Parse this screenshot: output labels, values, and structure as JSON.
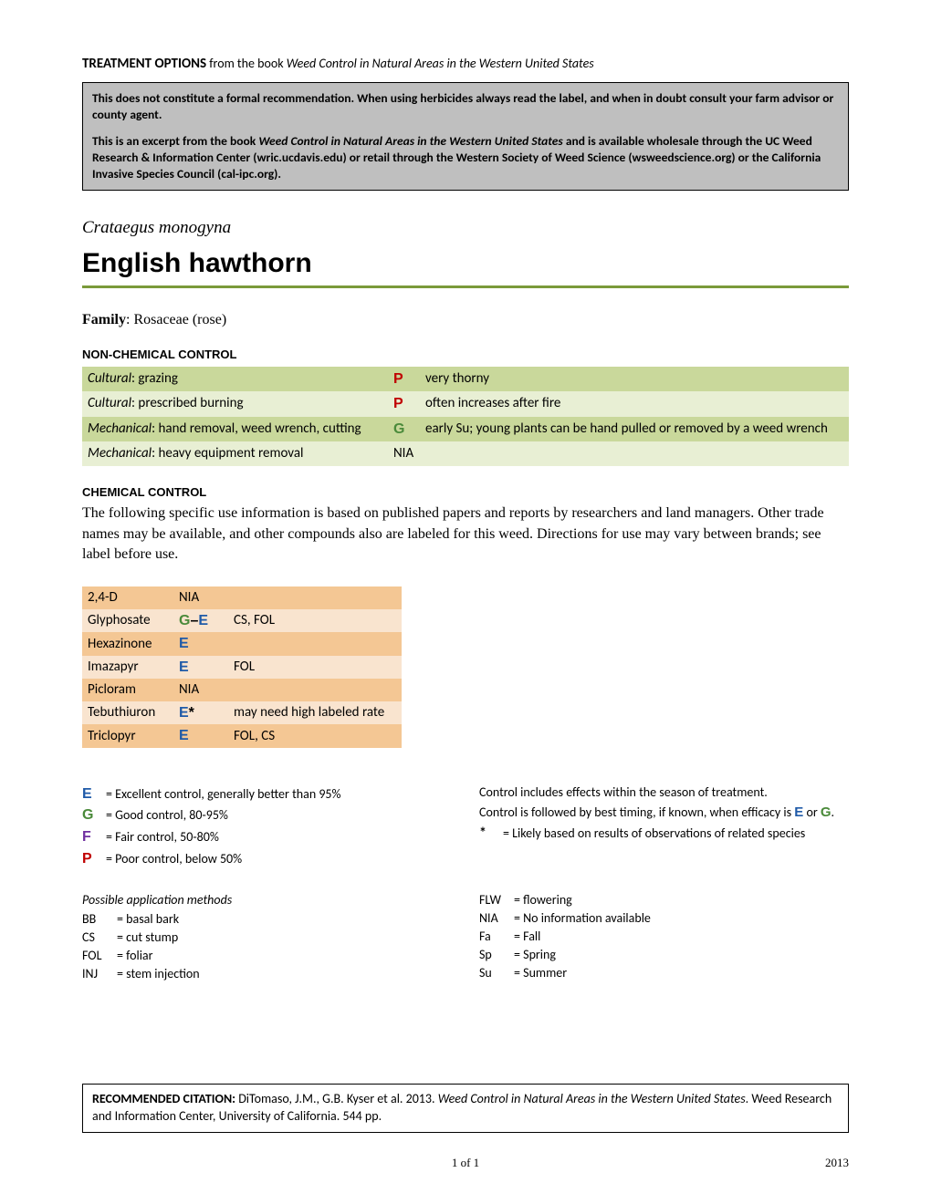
{
  "header": {
    "title_bold": "TREATMENT OPTIONS",
    "title_rest": " from the book ",
    "title_italic": "Weed Control in Natural Areas in the Western United States"
  },
  "disclaimer": {
    "p1": "This does not constitute a formal recommendation. When using herbicides always read the label, and when in doubt consult your farm advisor or county agent.",
    "p2_a": "This is an excerpt from the book ",
    "p2_italic": "Weed Control in Natural Areas in the Western United States",
    "p2_b": " and is available wholesale through the UC Weed Research & Information Center (wric.ucdavis.edu) or retail through the Western Society of Weed Science (wsweedscience.org) or the California Invasive Species Council (cal-ipc.org)."
  },
  "species": {
    "scientific": "Crataegus monogyna",
    "common": "English hawthorn",
    "family_label": "Family",
    "family_value": ": Rosaceae (rose)"
  },
  "nonchem": {
    "heading": "NON-CHEMICAL CONTROL",
    "rows": [
      {
        "type": "Cultural",
        "method": ": grazing",
        "rating": "P",
        "color": "#c00000",
        "note": "very thorny",
        "shade": "dark"
      },
      {
        "type": "Cultural",
        "method": ": prescribed burning",
        "rating": "P",
        "color": "#c00000",
        "note": "often increases after fire",
        "shade": "light"
      },
      {
        "type": "Mechanical",
        "method": ": hand removal, weed wrench, cutting",
        "rating": "G",
        "color": "#4a8a3a",
        "note": "early Su; young plants can be hand pulled or removed by a weed wrench",
        "shade": "dark"
      },
      {
        "type": "Mechanical",
        "method": ": heavy equipment removal",
        "rating": "NIA",
        "color": "#000",
        "note": "",
        "shade": "light"
      }
    ]
  },
  "chem": {
    "heading": "CHEMICAL CONTROL",
    "intro": "The following specific use information is based on published papers and reports by researchers and land managers. Other trade names may be available, and other compounds also are labeled for this weed. Directions for use may vary between brands; see label before use.",
    "rows": [
      {
        "name": "2,4-D",
        "rating": "NIA",
        "color": "#000",
        "note": "",
        "shade": "dark"
      },
      {
        "name": "Glyphosate",
        "rating": "G–E",
        "color": "dual",
        "note": "CS, FOL",
        "shade": "light"
      },
      {
        "name": "Hexazinone",
        "rating": "E",
        "color": "#1f5aa8",
        "note": "",
        "shade": "dark"
      },
      {
        "name": "Imazapyr",
        "rating": "E",
        "color": "#1f5aa8",
        "note": "FOL",
        "shade": "light"
      },
      {
        "name": "Picloram",
        "rating": "NIA",
        "color": "#000",
        "note": "",
        "shade": "dark"
      },
      {
        "name": "Tebuthiuron",
        "rating": "E*",
        "color": "#1f5aa8",
        "note": "may need high labeled rate",
        "shade": "light"
      },
      {
        "name": "Triclopyr",
        "rating": "E",
        "color": "#1f5aa8",
        "note": "FOL, CS",
        "shade": "dark"
      }
    ]
  },
  "legend": {
    "left": [
      {
        "sym": "E",
        "color": "#1f5aa8",
        "text": "= Excellent control, generally better than 95%"
      },
      {
        "sym": "G",
        "color": "#4a8a3a",
        "text": "= Good control, 80-95%"
      },
      {
        "sym": "F",
        "color": "#7030a0",
        "text": "= Fair control, 50-80%"
      },
      {
        "sym": "P",
        "color": "#c00000",
        "text": "= Poor control, below 50%"
      }
    ],
    "right_l1": "Control includes effects within the season of treatment.",
    "right_l2a": "Control is followed by best timing, if known, when efficacy is ",
    "right_l2b": " or ",
    "right_l2c": ".",
    "star_text": "= Likely based on results of observations of related species"
  },
  "app": {
    "heading": "Possible application methods",
    "left": [
      {
        "abbr": "BB",
        "text": "= basal bark"
      },
      {
        "abbr": "CS",
        "text": "= cut stump"
      },
      {
        "abbr": "FOL",
        "text": "= foliar"
      },
      {
        "abbr": "INJ",
        "text": "= stem injection"
      }
    ],
    "right": [
      {
        "abbr": "FLW",
        "text": "= flowering"
      },
      {
        "abbr": "NIA",
        "text": "= No information available"
      },
      {
        "abbr": "Fa",
        "text": "= Fall"
      },
      {
        "abbr": "Sp",
        "text": "= Spring"
      },
      {
        "abbr": "Su",
        "text": "= Summer"
      }
    ]
  },
  "citation": {
    "label": "RECOMMENDED CITATION:",
    "text_a": " DiTomaso, J.M., G.B. Kyser et al. 2013. ",
    "text_italic": "Weed Control in Natural Areas in the Western United States",
    "text_b": ". Weed Research and Information Center, University of California. 544 pp."
  },
  "footer": {
    "page": "1 of 1",
    "year": "2013"
  },
  "colors": {
    "E": "#1f5aa8",
    "G": "#4a8a3a",
    "F": "#7030a0",
    "P": "#c00000"
  }
}
